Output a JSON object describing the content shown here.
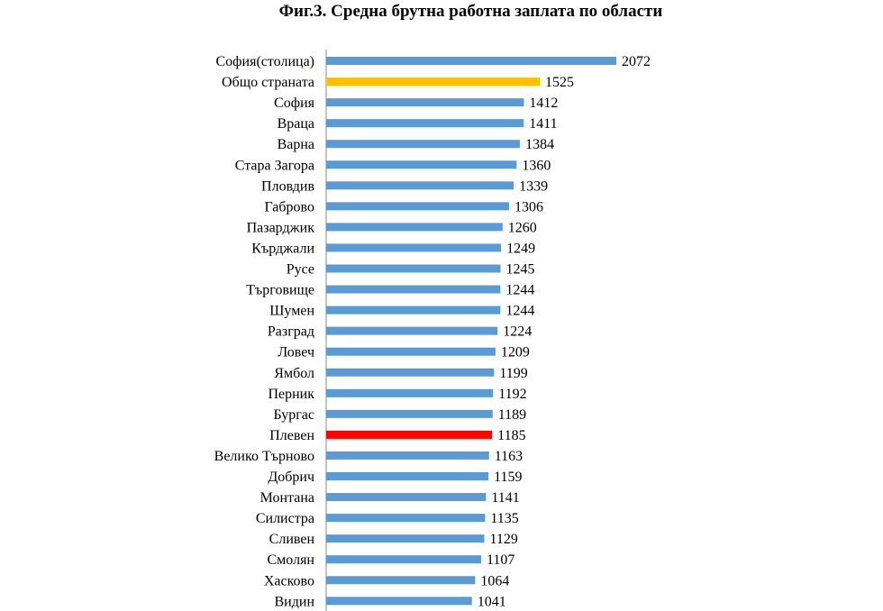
{
  "chart_data": {
    "type": "bar",
    "orientation": "horizontal",
    "title": "Фиг.3. Средна брутна работна заплата по области",
    "xlabel": "",
    "ylabel": "",
    "grid": false,
    "legend": "none",
    "data_labels": true,
    "categories": [
      "София(столица)",
      "Общо страната",
      "София",
      "Враца",
      "Варна",
      "Стара Загора",
      "Пловдив",
      "Габрово",
      "Пазарджик",
      "Кърджали",
      "Русе",
      "Търговище",
      "Шумен",
      "Разград",
      "Ловеч",
      "Ямбол",
      "Перник",
      "Бургас",
      "Плевен",
      "Велико Търново",
      "Добрич",
      "Монтана",
      "Силистра",
      "Сливен",
      "Смолян",
      "Хасково",
      "Видин"
    ],
    "values": [
      2072,
      1525,
      1412,
      1411,
      1384,
      1360,
      1339,
      1306,
      1260,
      1249,
      1245,
      1244,
      1244,
      1224,
      1209,
      1199,
      1192,
      1189,
      1185,
      1163,
      1159,
      1141,
      1135,
      1129,
      1107,
      1064,
      1041
    ],
    "colors": {
      "default": "#5B9BD5",
      "highlight_total": "#FFC000",
      "highlight_region": "#FF0000"
    },
    "highlights": {
      "Общо страната": "highlight_total",
      "Плевен": "highlight_region"
    }
  }
}
